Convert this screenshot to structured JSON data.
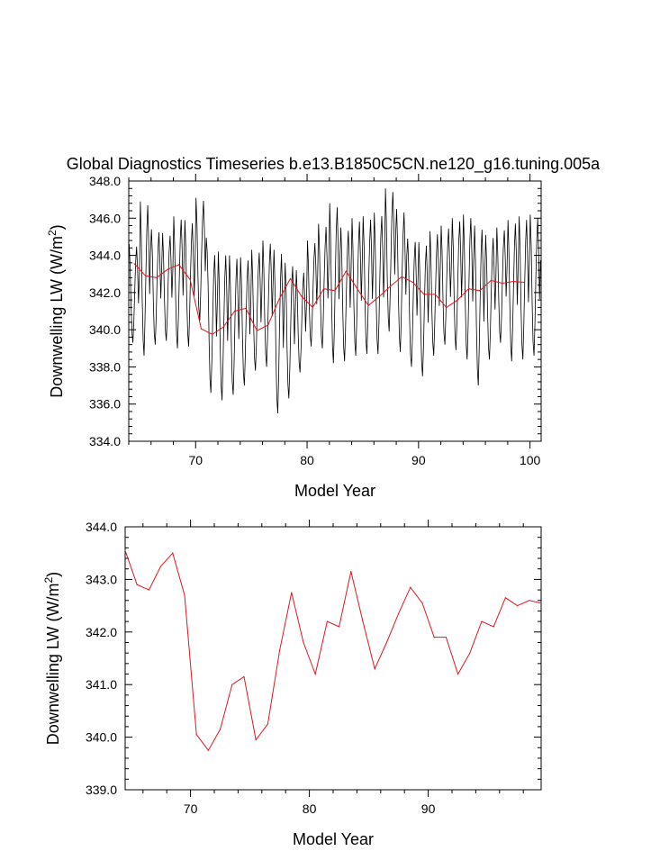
{
  "title": "Global Diagnostics Timeseries b.e13.B1850C5CN.ne120_g16.tuning.005a",
  "colors": {
    "monthly": "#000000",
    "annual": "#e8141c",
    "axes": "#000000"
  },
  "chart_data": [
    {
      "name": "top",
      "type": "line",
      "xlabel": "Model Year",
      "ylabel_main": "Downwelling LW (W/m",
      "ylabel_sup": "2",
      "ylabel_tail": ")",
      "xlim": [
        64.0,
        101.0
      ],
      "ylim": [
        334.0,
        348.0
      ],
      "xticks": [
        70,
        80,
        90,
        100
      ],
      "yticks": [
        334.0,
        336.0,
        338.0,
        340.0,
        342.0,
        344.0,
        346.0,
        348.0
      ],
      "yticklabels": [
        "334.0",
        "336.0",
        "338.0",
        "340.0",
        "342.0",
        "344.0",
        "346.0",
        "348.0"
      ],
      "monthly": {
        "x_start": 64.04,
        "step": 0.0833,
        "seasonal_max": [
          344.6,
          346.9,
          345.4,
          345.2,
          346.1,
          345.9,
          347.1,
          344.2,
          344.2,
          344.0,
          343.9,
          344.3,
          344.8,
          344.3,
          343.6,
          343.2,
          344.8,
          345.7,
          346.8,
          345.5,
          346.0,
          346.1,
          346.3,
          347.6,
          346.5,
          344.9,
          344.7,
          345.3,
          345.6,
          346.0,
          346.2,
          345.6,
          345.1,
          345.5,
          345.9,
          346.1,
          346.2
        ],
        "seasonal_min": [
          339.3,
          338.6,
          339.2,
          339.4,
          339.0,
          339.1,
          340.5,
          336.6,
          336.2,
          336.5,
          337.0,
          337.8,
          338.0,
          335.5,
          336.3,
          337.7,
          339.1,
          339.0,
          338.2,
          338.3,
          338.6,
          338.7,
          338.7,
          339.9,
          338.8,
          338.0,
          337.5,
          338.6,
          339.2,
          338.9,
          338.4,
          337.0,
          338.4,
          339.3,
          338.3,
          338.4,
          338.6
        ]
      },
      "annual": {
        "x": [
          64.5,
          65.5,
          66.5,
          67.5,
          68.5,
          69.5,
          70.5,
          71.5,
          72.5,
          73.5,
          74.5,
          75.5,
          76.5,
          77.5,
          78.5,
          79.5,
          80.5,
          81.5,
          82.5,
          83.5,
          84.5,
          85.5,
          86.5,
          87.5,
          88.5,
          89.5,
          90.5,
          91.5,
          92.5,
          93.5,
          94.5,
          95.5,
          96.5,
          97.5,
          98.5,
          99.5
        ],
        "y": [
          343.55,
          342.9,
          342.8,
          343.25,
          343.5,
          342.7,
          340.05,
          339.75,
          340.15,
          341.0,
          341.15,
          339.95,
          340.25,
          341.65,
          342.75,
          341.8,
          341.2,
          342.2,
          342.1,
          343.15,
          342.2,
          341.3,
          341.8,
          342.35,
          342.85,
          342.55,
          341.9,
          341.9,
          341.2,
          341.6,
          342.2,
          342.1,
          342.65,
          342.5,
          342.6,
          342.55
        ]
      }
    },
    {
      "name": "bottom",
      "type": "line",
      "xlabel": "Model Year",
      "ylabel_main": "Downwelling LW (W/m",
      "ylabel_sup": "2",
      "ylabel_tail": ")",
      "xlim": [
        64.5,
        99.5
      ],
      "ylim": [
        339.0,
        344.0
      ],
      "xticks": [
        70,
        80,
        90
      ],
      "yticks": [
        339.0,
        340.0,
        341.0,
        342.0,
        343.0,
        344.0
      ],
      "yticklabels": [
        "339.0",
        "340.0",
        "341.0",
        "342.0",
        "343.0",
        "344.0"
      ],
      "annual": {
        "x": [
          64.5,
          65.5,
          66.5,
          67.5,
          68.5,
          69.5,
          70.5,
          71.5,
          72.5,
          73.5,
          74.5,
          75.5,
          76.5,
          77.5,
          78.5,
          79.5,
          80.5,
          81.5,
          82.5,
          83.5,
          84.5,
          85.5,
          86.5,
          87.5,
          88.5,
          89.5,
          90.5,
          91.5,
          92.5,
          93.5,
          94.5,
          95.5,
          96.5,
          97.5,
          98.5,
          99.5
        ],
        "y": [
          343.55,
          342.9,
          342.8,
          343.25,
          343.5,
          342.7,
          340.05,
          339.75,
          340.15,
          341.0,
          341.15,
          339.95,
          340.25,
          341.65,
          342.75,
          341.8,
          341.2,
          342.2,
          342.1,
          343.15,
          342.2,
          341.3,
          341.8,
          342.35,
          342.85,
          342.55,
          341.9,
          341.9,
          341.2,
          341.6,
          342.2,
          342.1,
          342.65,
          342.5,
          342.6,
          342.55
        ]
      }
    }
  ]
}
